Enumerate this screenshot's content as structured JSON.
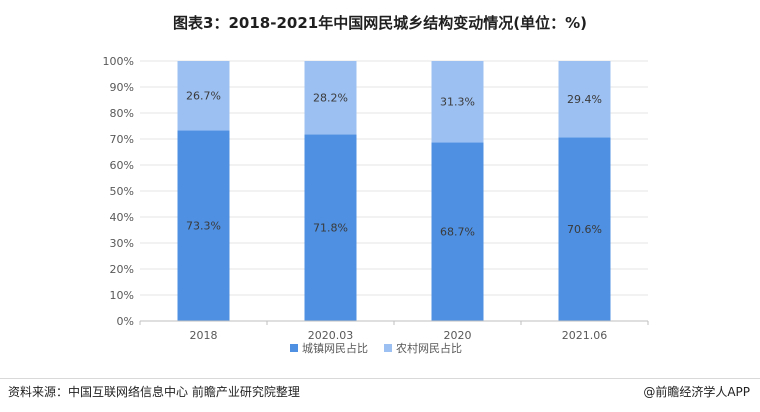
{
  "title": "图表3：2018-2021年中国网民城乡结构变动情况(单位：%)",
  "source": "资料来源：中国互联网络信息中心 前瞻产业研究院整理",
  "brand": "@前瞻经济学人APP",
  "colors": {
    "urban": "#4f90e2",
    "rural": "#9dc0f2",
    "grid": "#e6e6e6",
    "axis": "#bfbfbf"
  },
  "chart_data": {
    "type": "bar",
    "stacked": true,
    "categories": [
      "2018",
      "2020.03",
      "2020",
      "2021.06"
    ],
    "series": [
      {
        "name": "城镇网民占比",
        "values": [
          73.3,
          71.8,
          68.7,
          70.6
        ],
        "labels": [
          "73.3%",
          "71.8%",
          "68.7%",
          "70.6%"
        ]
      },
      {
        "name": "农村网民占比",
        "values": [
          26.7,
          28.2,
          31.3,
          29.4
        ],
        "labels": [
          "26.7%",
          "28.2%",
          "31.3%",
          "29.4%"
        ]
      }
    ],
    "ylim": [
      0,
      100
    ],
    "yticks": [
      "0%",
      "10%",
      "20%",
      "30%",
      "40%",
      "50%",
      "60%",
      "70%",
      "80%",
      "90%",
      "100%"
    ],
    "grid": true,
    "legend": "bottom"
  }
}
